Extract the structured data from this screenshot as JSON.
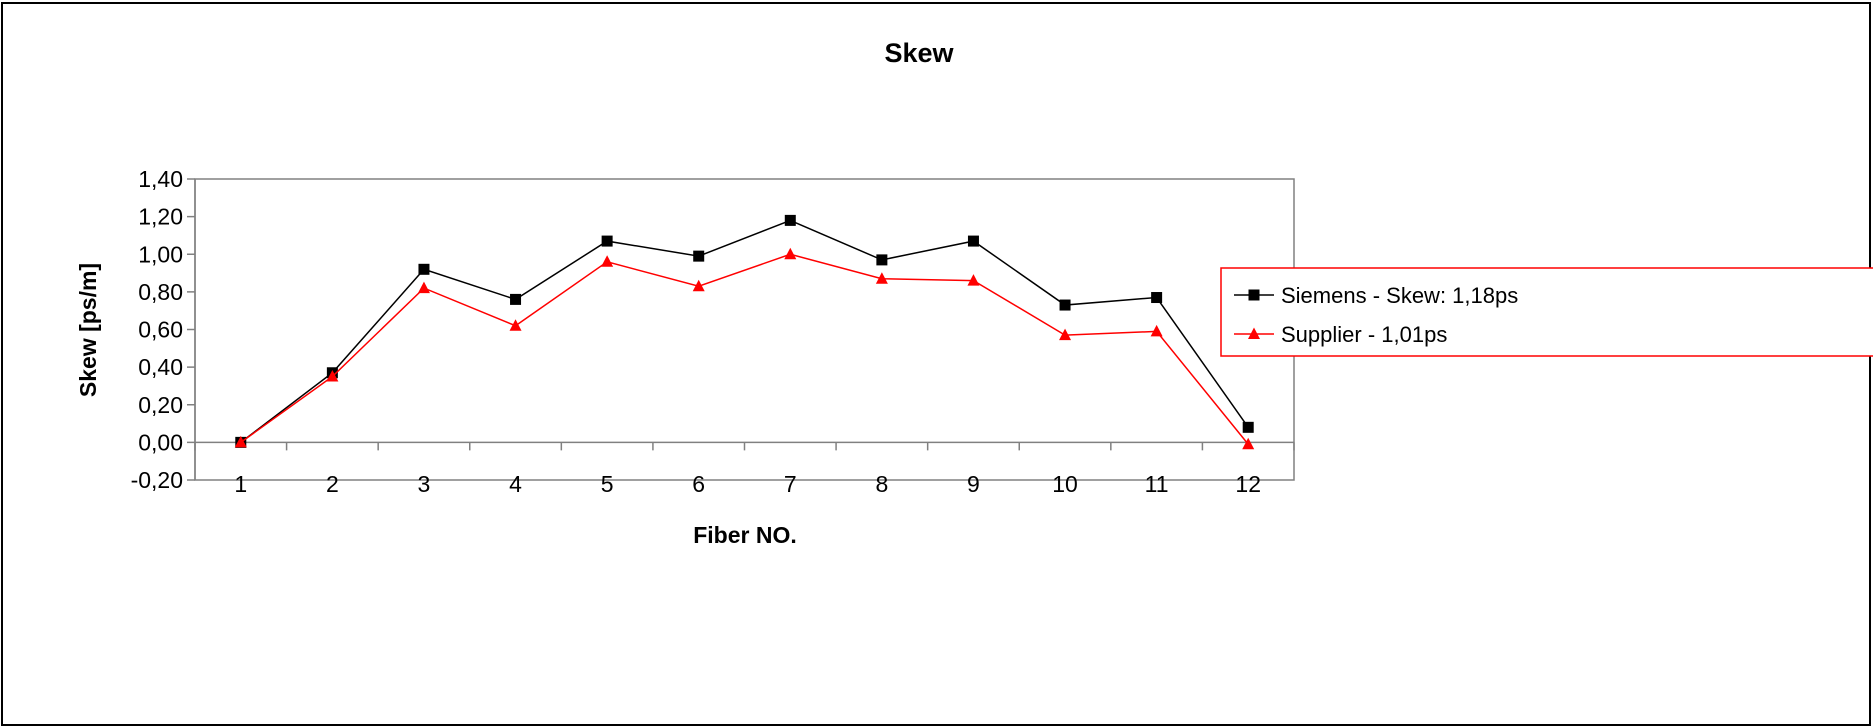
{
  "chart_data": {
    "type": "line",
    "title": "Skew",
    "xlabel": "Fiber NO.",
    "ylabel": "Skew [ps/m]",
    "categories": [
      "1",
      "2",
      "3",
      "4",
      "5",
      "6",
      "7",
      "8",
      "9",
      "10",
      "11",
      "12"
    ],
    "ylim": [
      -0.2,
      1.4
    ],
    "yticks": [
      -0.2,
      0.0,
      0.2,
      0.4,
      0.6,
      0.8,
      1.0,
      1.2,
      1.4
    ],
    "ytick_labels": [
      "-0,20",
      "0,00",
      "0,20",
      "0,40",
      "0,60",
      "0,80",
      "1,00",
      "1,20",
      "1,40"
    ],
    "grid": false,
    "legend_position": "right",
    "series": [
      {
        "name": "Siemens - Skew: 1,18ps",
        "color": "#000000",
        "marker": "square",
        "values": [
          0.0,
          0.37,
          0.92,
          0.76,
          1.07,
          0.99,
          1.18,
          0.97,
          1.07,
          0.73,
          0.77,
          0.08
        ]
      },
      {
        "name": "Supplier - 1,01ps",
        "color": "#ff0000",
        "marker": "triangle",
        "values": [
          0.0,
          0.35,
          0.82,
          0.62,
          0.96,
          0.83,
          1.0,
          0.87,
          0.86,
          0.57,
          0.59,
          -0.01
        ]
      }
    ],
    "legend_border_color": "#ff0000"
  }
}
